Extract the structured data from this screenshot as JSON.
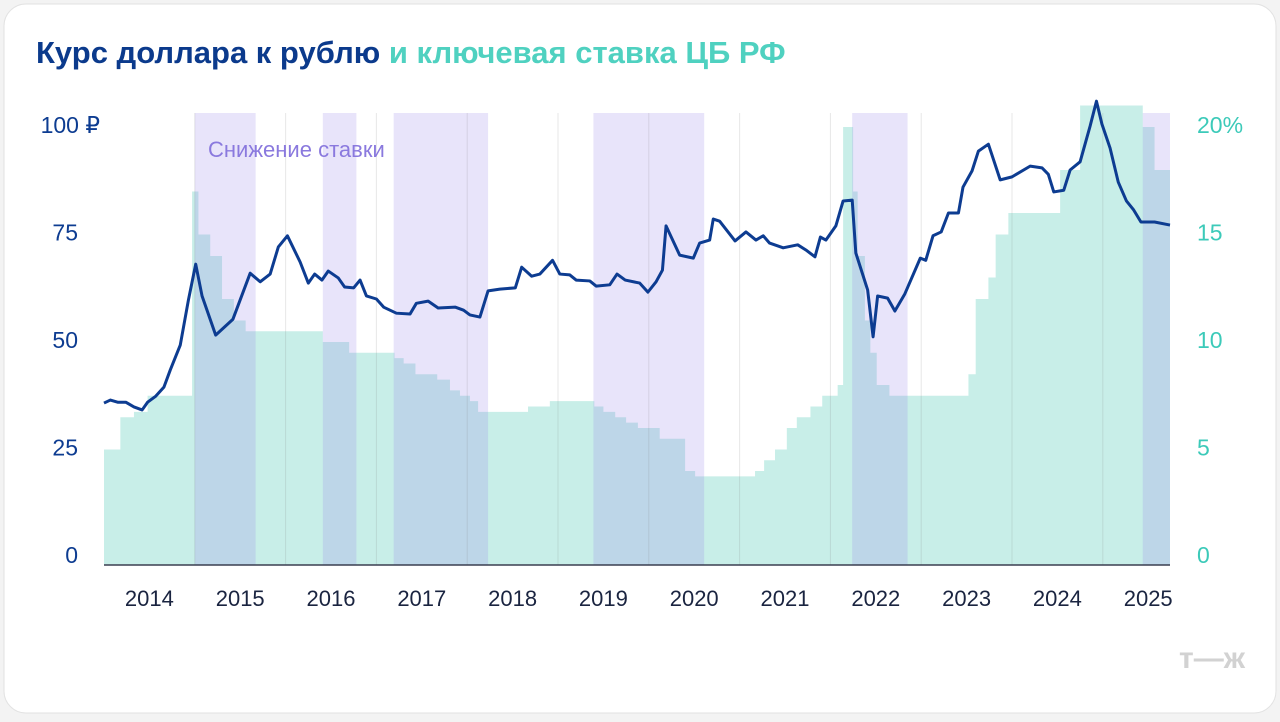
{
  "chart_data": {
    "type": "line",
    "title": "Курс доллара к рублю",
    "title_continued": "и ключевая ставка ЦБ РФ",
    "annotation": "Снижение ставки",
    "watermark": "т—ж",
    "xlim": [
      2014,
      2025.74
    ],
    "xticks": [
      2014,
      2015,
      2016,
      2017,
      2018,
      2019,
      2020,
      2021,
      2022,
      2023,
      2024,
      2025
    ],
    "ylim": [
      0,
      100
    ],
    "yticks": [
      0,
      25,
      50,
      75,
      {
        "value": 100,
        "label": "100 ₽"
      }
    ],
    "y2lim": [
      0,
      20
    ],
    "y2ticks": [
      0,
      5,
      10,
      15,
      {
        "value": 20,
        "label": "20%"
      }
    ],
    "bands": [
      [
        2015.0,
        2015.67
      ],
      [
        2016.41,
        2016.78
      ],
      [
        2017.19,
        2018.23
      ],
      [
        2019.39,
        2020.61
      ],
      [
        2022.24,
        2022.85
      ],
      [
        2025.44,
        2025.74
      ]
    ],
    "band_color": "rgba(150,130,230,0.22)",
    "series": [
      {
        "type": "line",
        "color": "#0d3c91",
        "x": [
          2014.0,
          2014.07,
          2014.15,
          2014.24,
          2014.33,
          2014.42,
          2014.48,
          2014.57,
          2014.66,
          2014.73,
          2014.84,
          2014.93,
          2015.01,
          2015.08,
          2015.23,
          2015.42,
          2015.61,
          2015.72,
          2015.83,
          2015.92,
          2016.02,
          2016.16,
          2016.25,
          2016.32,
          2016.4,
          2016.47,
          2016.58,
          2016.65,
          2016.75,
          2016.82,
          2016.89,
          2017.0,
          2017.08,
          2017.22,
          2017.37,
          2017.44,
          2017.57,
          2017.68,
          2017.87,
          2017.96,
          2018.03,
          2018.14,
          2018.23,
          2018.36,
          2018.53,
          2018.6,
          2018.71,
          2018.8,
          2018.94,
          2019.02,
          2019.13,
          2019.2,
          2019.35,
          2019.42,
          2019.57,
          2019.65,
          2019.74,
          2019.9,
          2019.99,
          2020.08,
          2020.15,
          2020.19,
          2020.34,
          2020.49,
          2020.56,
          2020.67,
          2020.71,
          2020.78,
          2020.95,
          2021.07,
          2021.18,
          2021.26,
          2021.33,
          2021.48,
          2021.64,
          2021.73,
          2021.83,
          2021.89,
          2021.95,
          2022.06,
          2022.14,
          2022.24,
          2022.28,
          2022.41,
          2022.47,
          2022.52,
          2022.63,
          2022.71,
          2022.82,
          2022.99,
          2023.05,
          2023.13,
          2023.22,
          2023.3,
          2023.41,
          2023.46,
          2023.56,
          2023.63,
          2023.74,
          2023.87,
          2024.0,
          2024.2,
          2024.33,
          2024.4,
          2024.46,
          2024.57,
          2024.64,
          2024.75,
          2024.86,
          2024.93,
          2024.99,
          2025.08,
          2025.17,
          2025.26,
          2025.34,
          2025.42,
          2025.57,
          2025.74
        ],
        "values": [
          35.8,
          36.5,
          36,
          36,
          34.9,
          34.2,
          36,
          37.4,
          39.5,
          43.5,
          49.3,
          59.8,
          68.1,
          60.7,
          51.6,
          55.3,
          66,
          64,
          65.8,
          72.1,
          74.7,
          68.6,
          63.7,
          65.8,
          64.4,
          66.5,
          64.9,
          62.8,
          62.6,
          64.4,
          60.7,
          60,
          58.1,
          56.7,
          56.5,
          59,
          59.5,
          57.9,
          58.1,
          57.4,
          56.3,
          55.8,
          61.9,
          62.3,
          62.6,
          67.4,
          65.3,
          65.8,
          69,
          65.8,
          65.6,
          64.4,
          64.2,
          63,
          63.3,
          65.8,
          64.4,
          63.7,
          61.6,
          64,
          66.7,
          77,
          70.2,
          69.5,
          73,
          73.7,
          78.6,
          78.1,
          73.5,
          75.6,
          73.7,
          74.7,
          73,
          71.9,
          72.6,
          71.4,
          69.8,
          74.4,
          73.7,
          77,
          82.8,
          83,
          70.7,
          62.1,
          51.2,
          60.7,
          60.2,
          57.2,
          61.2,
          69.5,
          69,
          74.7,
          75.6,
          80,
          80,
          86,
          89.8,
          94.4,
          96,
          87.7,
          88.4,
          90.9,
          90.5,
          89,
          84.9,
          85.3,
          90,
          91.9,
          100.2,
          106,
          100.7,
          95.1,
          87.2,
          82.8,
          80.7,
          77.9,
          77.9,
          77.2
        ]
      },
      {
        "type": "step-area",
        "axis": "y2",
        "color": "#c8eee8",
        "x": [
          2014.0,
          2014.18,
          2014.33,
          2014.48,
          2014.97,
          2015.04,
          2015.17,
          2015.3,
          2015.43,
          2015.56,
          2016.41,
          2016.7,
          2017.2,
          2017.3,
          2017.43,
          2017.67,
          2017.81,
          2017.92,
          2018.03,
          2018.12,
          2018.67,
          2018.91,
          2019.4,
          2019.5,
          2019.63,
          2019.75,
          2019.88,
          2020.12,
          2020.4,
          2020.51,
          2021.17,
          2021.27,
          2021.39,
          2021.52,
          2021.63,
          2021.78,
          2021.91,
          2022.08,
          2022.14,
          2022.25,
          2022.3,
          2022.38,
          2022.44,
          2022.51,
          2022.65,
          2023.52,
          2023.6,
          2023.74,
          2023.82,
          2023.96,
          2024.53,
          2024.75,
          2025.44,
          2025.57
        ],
        "values": [
          5,
          6.5,
          6.75,
          7.5,
          17,
          15,
          14,
          12,
          11,
          10.5,
          10,
          9.5,
          9.25,
          9,
          8.5,
          8.25,
          7.75,
          7.5,
          7.25,
          6.75,
          7,
          7.25,
          7,
          6.75,
          6.5,
          6.25,
          6,
          5.5,
          4,
          3.75,
          4,
          4.5,
          5,
          6,
          6.5,
          7,
          7.5,
          8,
          20,
          17,
          14,
          11,
          9.5,
          8,
          7.5,
          8.5,
          12,
          13,
          15,
          16,
          18,
          21,
          20,
          18
        ]
      }
    ]
  }
}
